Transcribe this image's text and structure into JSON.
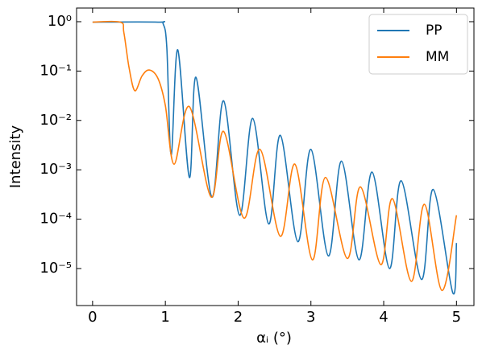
{
  "chart_data": {
    "type": "line",
    "xlabel": "αᵢ (°)",
    "ylabel": "Intensity",
    "log_y": true,
    "legend": "upper right",
    "xlim": [
      -0.22,
      5.24
    ],
    "ylim": [
      1.78e-06,
      1.89
    ],
    "xticks": [
      0,
      1,
      2,
      3,
      4,
      5
    ],
    "yticks": [
      {
        "value": 1,
        "label": "10⁰"
      },
      {
        "value": 0.1,
        "label": "10⁻¹"
      },
      {
        "value": 0.01,
        "label": "10⁻²"
      },
      {
        "value": 0.001,
        "label": "10⁻³"
      },
      {
        "value": 0.0001,
        "label": "10⁻⁴"
      },
      {
        "value": 1e-05,
        "label": "10⁻⁵"
      }
    ],
    "series": [
      {
        "name": "PP",
        "color": "#1f77b4",
        "x": [
          0,
          0.9,
          0.97,
          1.02,
          1.08,
          1.17,
          1.33,
          1.42,
          1.64,
          1.8,
          2.02,
          2.2,
          2.42,
          2.58,
          2.82,
          3.0,
          3.24,
          3.42,
          3.66,
          3.84,
          4.08,
          4.24,
          4.52,
          4.68,
          4.95,
          5.0
        ],
        "values": [
          0.98,
          0.98,
          0.9,
          0.3,
          0.002,
          0.27,
          0.0007,
          0.075,
          0.00028,
          0.025,
          0.00012,
          0.011,
          8e-05,
          0.005,
          3.5e-05,
          0.0026,
          1.8e-05,
          0.0015,
          1.5e-05,
          0.0009,
          1e-05,
          0.0006,
          6e-06,
          0.0004,
          3.2e-06,
          3.3e-05
        ]
      },
      {
        "name": "MM",
        "color": "#ff7f0e",
        "x": [
          0,
          0.38,
          0.43,
          0.5,
          0.58,
          0.68,
          0.78,
          0.9,
          1.0,
          1.12,
          1.33,
          1.63,
          1.8,
          2.08,
          2.3,
          2.58,
          2.78,
          3.02,
          3.2,
          3.5,
          3.68,
          3.96,
          4.12,
          4.38,
          4.56,
          4.8,
          5.0
        ],
        "values": [
          0.98,
          0.98,
          0.6,
          0.12,
          0.04,
          0.08,
          0.105,
          0.07,
          0.02,
          0.0013,
          0.019,
          0.00028,
          0.006,
          0.000105,
          0.0026,
          4.5e-05,
          0.0013,
          1.5e-05,
          0.0007,
          1.6e-05,
          0.00045,
          1.2e-05,
          0.00026,
          5.5e-06,
          0.0002,
          3.6e-06,
          0.00012
        ]
      }
    ]
  }
}
